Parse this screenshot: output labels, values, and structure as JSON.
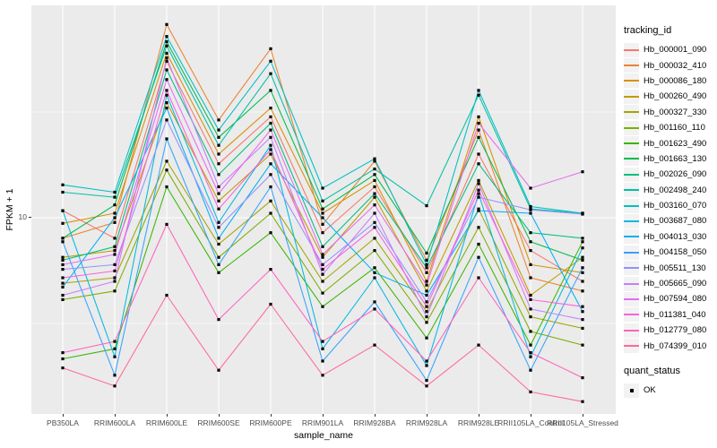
{
  "figure": {
    "background": "#FFFFFF",
    "panel_background": "#EBEBEB",
    "grid_color": "#FFFFFF",
    "axis_text_color": "#4D4D4D",
    "point_color": "#000000"
  },
  "axes": {
    "x_title": "sample_name",
    "y_title": "FPKM + 1",
    "y_tick_label": "10"
  },
  "legend": {
    "tracking_title": "tracking_id",
    "quant_title": "quant_status",
    "quant_items": [
      {
        "label": "OK"
      }
    ]
  },
  "chart_data": {
    "type": "line",
    "x_categories": [
      "PB350LA",
      "RRIM600LA",
      "RRIM600LE",
      "RRIM600SE",
      "RRIM600PE",
      "RRIM901LA",
      "RRIM928BA",
      "RRIM928LA",
      "RRIM928LE",
      "RRII105LA_Control",
      "RRII105LA_Stressed"
    ],
    "xlabel": "sample_name",
    "ylabel": "FPKM + 1",
    "y_scale": "log10",
    "y_major_breaks": [
      10
    ],
    "y_minor_breaks": [
      3.162,
      31.62
    ],
    "ylim_approx": [
      1.2,
      100
    ],
    "marker": "black-square",
    "quant_status": "OK",
    "series": [
      {
        "name": "Hb_000001_090",
        "color": "#F8766D",
        "values": [
          10.8,
          8.0,
          55,
          18,
          30,
          8.5,
          14,
          5.5,
          20,
          7.0,
          5.0
        ]
      },
      {
        "name": "Hb_000032_410",
        "color": "#EA8331",
        "values": [
          8.0,
          9.5,
          82,
          29,
          63,
          9.3,
          18.5,
          6.3,
          26,
          5.2,
          4.5
        ]
      },
      {
        "name": "Hb_000086_180",
        "color": "#D89000",
        "values": [
          9.4,
          10.5,
          60,
          20,
          33,
          10.5,
          15,
          5.0,
          30,
          6.0,
          5.5
        ]
      },
      {
        "name": "Hb_000260_490",
        "color": "#C09B00",
        "values": [
          6.5,
          7.0,
          35,
          12,
          20,
          6.5,
          12.5,
          4.5,
          15,
          4.3,
          6.5
        ]
      },
      {
        "name": "Hb_000327_330",
        "color": "#A3A500",
        "values": [
          4.9,
          5.2,
          18.5,
          7.5,
          12,
          5.0,
          8.0,
          3.6,
          11,
          3.4,
          3.0
        ]
      },
      {
        "name": "Hb_001160_110",
        "color": "#7CAE00",
        "values": [
          4.1,
          4.5,
          16.8,
          6.5,
          10.5,
          4.4,
          7.0,
          3.2,
          9.0,
          2.9,
          2.5
        ]
      },
      {
        "name": "Hb_001623_490",
        "color": "#39B600",
        "values": [
          2.15,
          2.4,
          14,
          5.5,
          8.5,
          3.8,
          5.8,
          2.7,
          7.5,
          2.5,
          7.7
        ]
      },
      {
        "name": "Hb_001663_130",
        "color": "#00BB4E",
        "values": [
          8.0,
          11.5,
          68,
          24,
          40,
          11.0,
          16,
          6.8,
          24,
          7.7,
          6.3
        ]
      },
      {
        "name": "Hb_002026_090",
        "color": "#00BF7D",
        "values": [
          6.3,
          7.3,
          50,
          16,
          28,
          7.3,
          13,
          5.8,
          18,
          8.5,
          8.0
        ]
      },
      {
        "name": "Hb_002498_240",
        "color": "#00C1A3",
        "values": [
          13.2,
          12.5,
          65,
          22,
          48,
          12.0,
          17,
          11.4,
          38,
          11.0,
          10.5
        ]
      },
      {
        "name": "Hb_003160_070",
        "color": "#00BFC4",
        "values": [
          14.3,
          13.2,
          72,
          26,
          55,
          13.8,
          19,
          6.0,
          40,
          11.3,
          10.5
        ]
      },
      {
        "name": "Hb_003687_080",
        "color": "#00BAE0",
        "values": [
          10.8,
          2.2,
          38,
          9.5,
          22,
          2.4,
          5.2,
          2.0,
          13,
          2.2,
          7.2
        ]
      },
      {
        "name": "Hb_004013_030",
        "color": "#00B0F6",
        "values": [
          4.7,
          10.0,
          33,
          8.0,
          18,
          10.0,
          5.5,
          4.3,
          10.8,
          10.5,
          3.6
        ]
      },
      {
        "name": "Hb_004158_050",
        "color": "#35A2FF",
        "values": [
          7.7,
          1.8,
          23.6,
          6.0,
          14,
          2.1,
          4.0,
          1.7,
          6.5,
          1.9,
          5.8
        ]
      },
      {
        "name": "Hb_005511_130",
        "color": "#9590FF",
        "values": [
          5.7,
          6.0,
          29,
          9.0,
          16,
          6.0,
          9.5,
          4.0,
          12.5,
          10.9,
          10.4
        ]
      },
      {
        "name": "Hb_005665_090",
        "color": "#C77CFF",
        "values": [
          4.3,
          5.0,
          57,
          14,
          24,
          5.4,
          10.5,
          3.4,
          14.5,
          3.7,
          3.3
        ]
      },
      {
        "name": "Hb_007594_080",
        "color": "#E76BF3",
        "values": [
          6.0,
          6.7,
          45,
          13,
          26,
          6.7,
          11.5,
          4.8,
          28,
          13.8,
          16.5
        ]
      },
      {
        "name": "Hb_011381_040",
        "color": "#FA62DB",
        "values": [
          5.2,
          5.6,
          40,
          11,
          21,
          5.7,
          9.0,
          3.8,
          13.5,
          4.1,
          3.8
        ]
      },
      {
        "name": "Hb_012779_080",
        "color": "#FF62BC",
        "values": [
          2.3,
          2.6,
          9.3,
          3.3,
          5.7,
          2.6,
          3.7,
          2.1,
          5.2,
          2.3,
          1.75
        ]
      },
      {
        "name": "Hb_074399_010",
        "color": "#FF6A98",
        "values": [
          1.95,
          1.6,
          4.3,
          1.9,
          3.9,
          1.8,
          2.5,
          1.6,
          2.5,
          1.5,
          1.35
        ]
      }
    ]
  }
}
